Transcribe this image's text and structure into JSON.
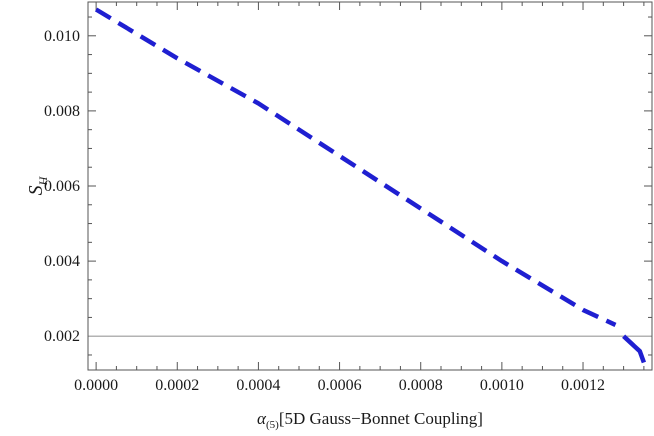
{
  "chart_data": {
    "type": "line",
    "title": "",
    "xlabel": {
      "symbol": "α",
      "subscript": "(5)",
      "text": "[5D Gauss−Bonnet Coupling]"
    },
    "ylabel": {
      "symbol": "S",
      "subscript": "H"
    },
    "xlim": [
      -2e-05,
      0.00137
    ],
    "ylim": [
      0.0011,
      0.0109
    ],
    "x_ticks": [
      0.0,
      0.0002,
      0.0004,
      0.0006,
      0.0008,
      0.001,
      0.0012
    ],
    "x_tick_labels": [
      "0.0000",
      "0.0002",
      "0.0004",
      "0.0006",
      "0.0008",
      "0.0010",
      "0.0012"
    ],
    "y_ticks": [
      0.002,
      0.004,
      0.006,
      0.008,
      0.01
    ],
    "y_tick_labels": [
      "0.002",
      "0.004",
      "0.006",
      "0.008",
      "0.010"
    ],
    "reference_line": {
      "y": 0.002,
      "color": "#b3b3b3"
    },
    "series": [
      {
        "style": "dashed",
        "color": "#1f1fd1",
        "x": [
          0.0,
          0.0002,
          0.0004,
          0.0006,
          0.0008,
          0.001,
          0.0012,
          0.00128
        ],
        "y": [
          0.0107,
          0.0094,
          0.0082,
          0.0068,
          0.0054,
          0.004,
          0.0027,
          0.0023
        ]
      },
      {
        "style": "solid",
        "color": "#1f1fd1",
        "x": [
          0.0013,
          0.00132,
          0.00134,
          0.00135
        ],
        "y": [
          0.002,
          0.0018,
          0.0016,
          0.0013
        ]
      }
    ],
    "grid": false
  }
}
